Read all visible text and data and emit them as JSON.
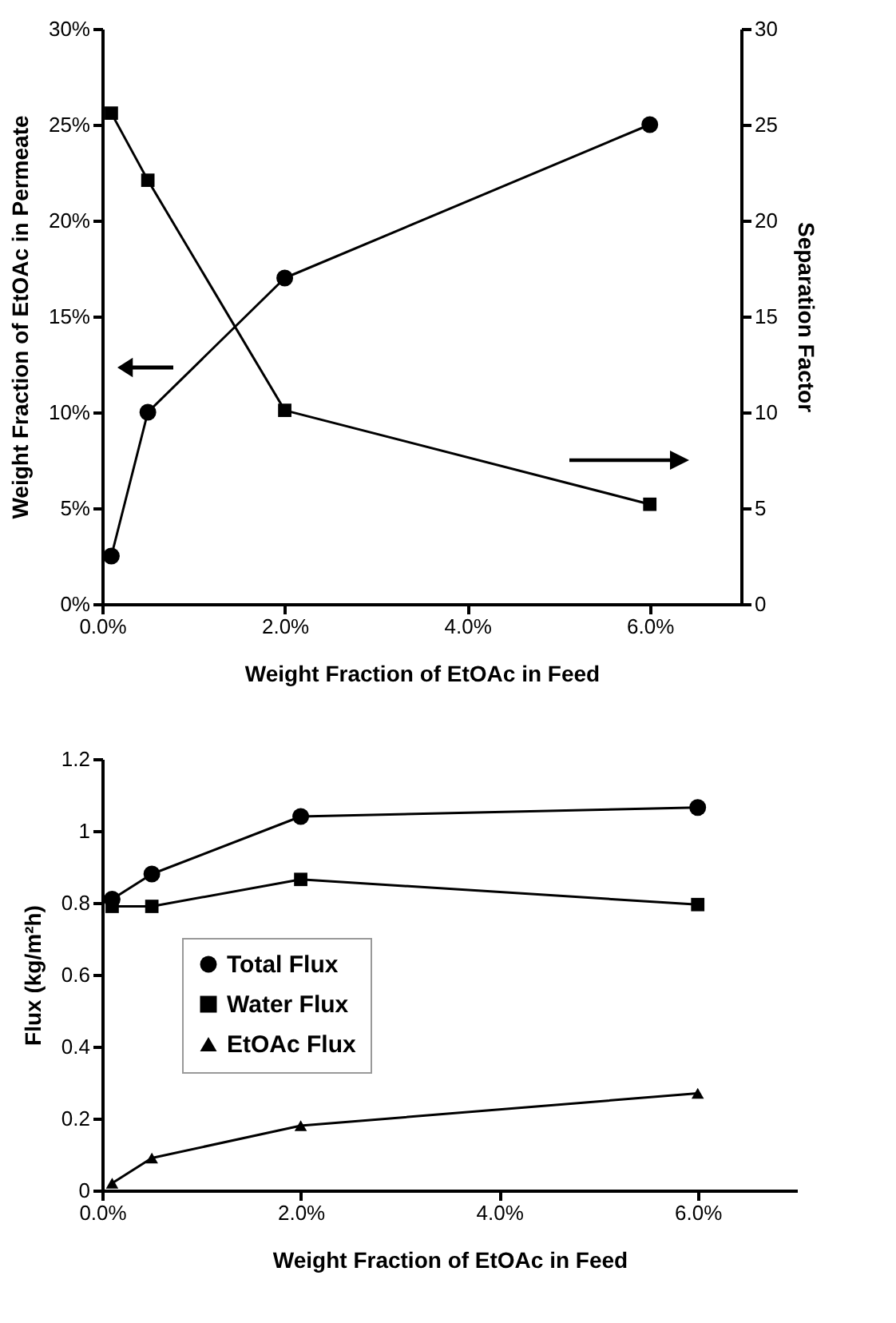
{
  "chart_data": [
    {
      "type": "line",
      "xlabel": "Weight Fraction of EtOAc in Feed",
      "ylabel": "Weight Fraction of EtOAc in Permeate",
      "y2label": "Separation Factor",
      "x": [
        0.1,
        0.5,
        2,
        6
      ],
      "series": [
        {
          "color": "#000000",
          "marker": "circle",
          "values": [
            2.5,
            10,
            17,
            25
          ]
        },
        {
          "color": "#000000",
          "marker": "square",
          "axis": "y2",
          "values": [
            25.6,
            22.1,
            10.1,
            5.2
          ]
        }
      ],
      "xlim": [
        0,
        7
      ],
      "xticks": [
        {
          "value": 0,
          "label": "0.0%"
        },
        {
          "value": 2,
          "label": "2.0%"
        },
        {
          "value": 4,
          "label": "4.0%"
        },
        {
          "value": 6,
          "label": "6.0%"
        }
      ],
      "ylim": [
        0,
        30
      ],
      "yticks": [
        {
          "value": 0,
          "label": "0%"
        },
        {
          "value": 5,
          "label": "5%"
        },
        {
          "value": 10,
          "label": "10%"
        },
        {
          "value": 15,
          "label": "15%"
        },
        {
          "value": 20,
          "label": "20%"
        },
        {
          "value": 25,
          "label": "25%"
        },
        {
          "value": 30,
          "label": "30%"
        }
      ],
      "y2lim": [
        0,
        30
      ],
      "y2ticks": [
        0,
        5,
        10,
        15,
        20,
        25,
        30
      ]
    },
    {
      "type": "line",
      "xlabel": "Weight Fraction of EtOAc in Feed",
      "ylabel": "Flux (kg/m²h)",
      "x": [
        0.1,
        0.5,
        2,
        6
      ],
      "series": [
        {
          "name": "Total Flux",
          "color": "#000000",
          "marker": "circle",
          "values": [
            0.81,
            0.88,
            1.04,
            1.065
          ]
        },
        {
          "name": "Water Flux",
          "color": "#000000",
          "marker": "square",
          "values": [
            0.79,
            0.79,
            0.865,
            0.795
          ]
        },
        {
          "name": "EtOAc Flux",
          "color": "#000000",
          "marker": "triangle",
          "values": [
            0.02,
            0.09,
            0.18,
            0.27
          ]
        }
      ],
      "xlim": [
        0,
        7
      ],
      "xticks": [
        {
          "value": 0,
          "label": "0.0%"
        },
        {
          "value": 2,
          "label": "2.0%"
        },
        {
          "value": 4,
          "label": "4.0%"
        },
        {
          "value": 6,
          "label": "6.0%"
        }
      ],
      "ylim": [
        0,
        1.2
      ],
      "yticks": [
        0,
        {
          "value": 0.2,
          "label": "0.2"
        },
        {
          "value": 0.4,
          "label": "0.4"
        },
        {
          "value": 0.6,
          "label": "0.6"
        },
        {
          "value": 0.8,
          "label": "0.8"
        },
        1,
        {
          "value": 1.2,
          "label": "1.2"
        }
      ],
      "legend": "left"
    }
  ]
}
